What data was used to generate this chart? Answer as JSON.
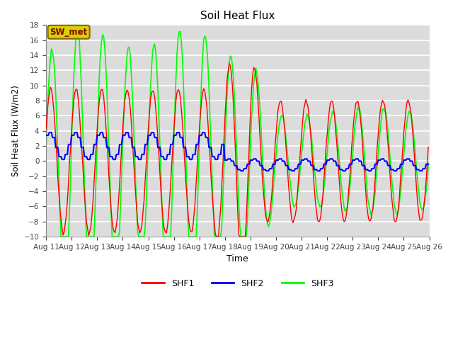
{
  "title": "Soil Heat Flux",
  "xlabel": "Time",
  "ylabel": "Soil Heat Flux (W/m2)",
  "ylim": [
    -10,
    18
  ],
  "yticks": [
    -10,
    -8,
    -6,
    -4,
    -2,
    0,
    2,
    4,
    6,
    8,
    10,
    12,
    14,
    16,
    18
  ],
  "bg_color": "#dcdcdc",
  "grid_color": "#ffffff",
  "annotation_text": "SW_met",
  "annotation_bg": "#d4d400",
  "annotation_border": "#886600",
  "annotation_text_color": "#880000",
  "legend_labels": [
    "SHF1",
    "SHF2",
    "SHF3"
  ],
  "line_colors": [
    "red",
    "blue",
    "lime"
  ],
  "n_days": 15,
  "n_per_day": 24,
  "xtick_labels": [
    "Aug 11",
    "Aug 12",
    "Aug 13",
    "Aug 14",
    "Aug 15",
    "Aug 16",
    "Aug 17",
    "Aug 18",
    "Aug 19",
    "Aug 20",
    "Aug 21",
    "Aug 22",
    "Aug 23",
    "Aug 24",
    "Aug 25",
    "Aug 26"
  ]
}
